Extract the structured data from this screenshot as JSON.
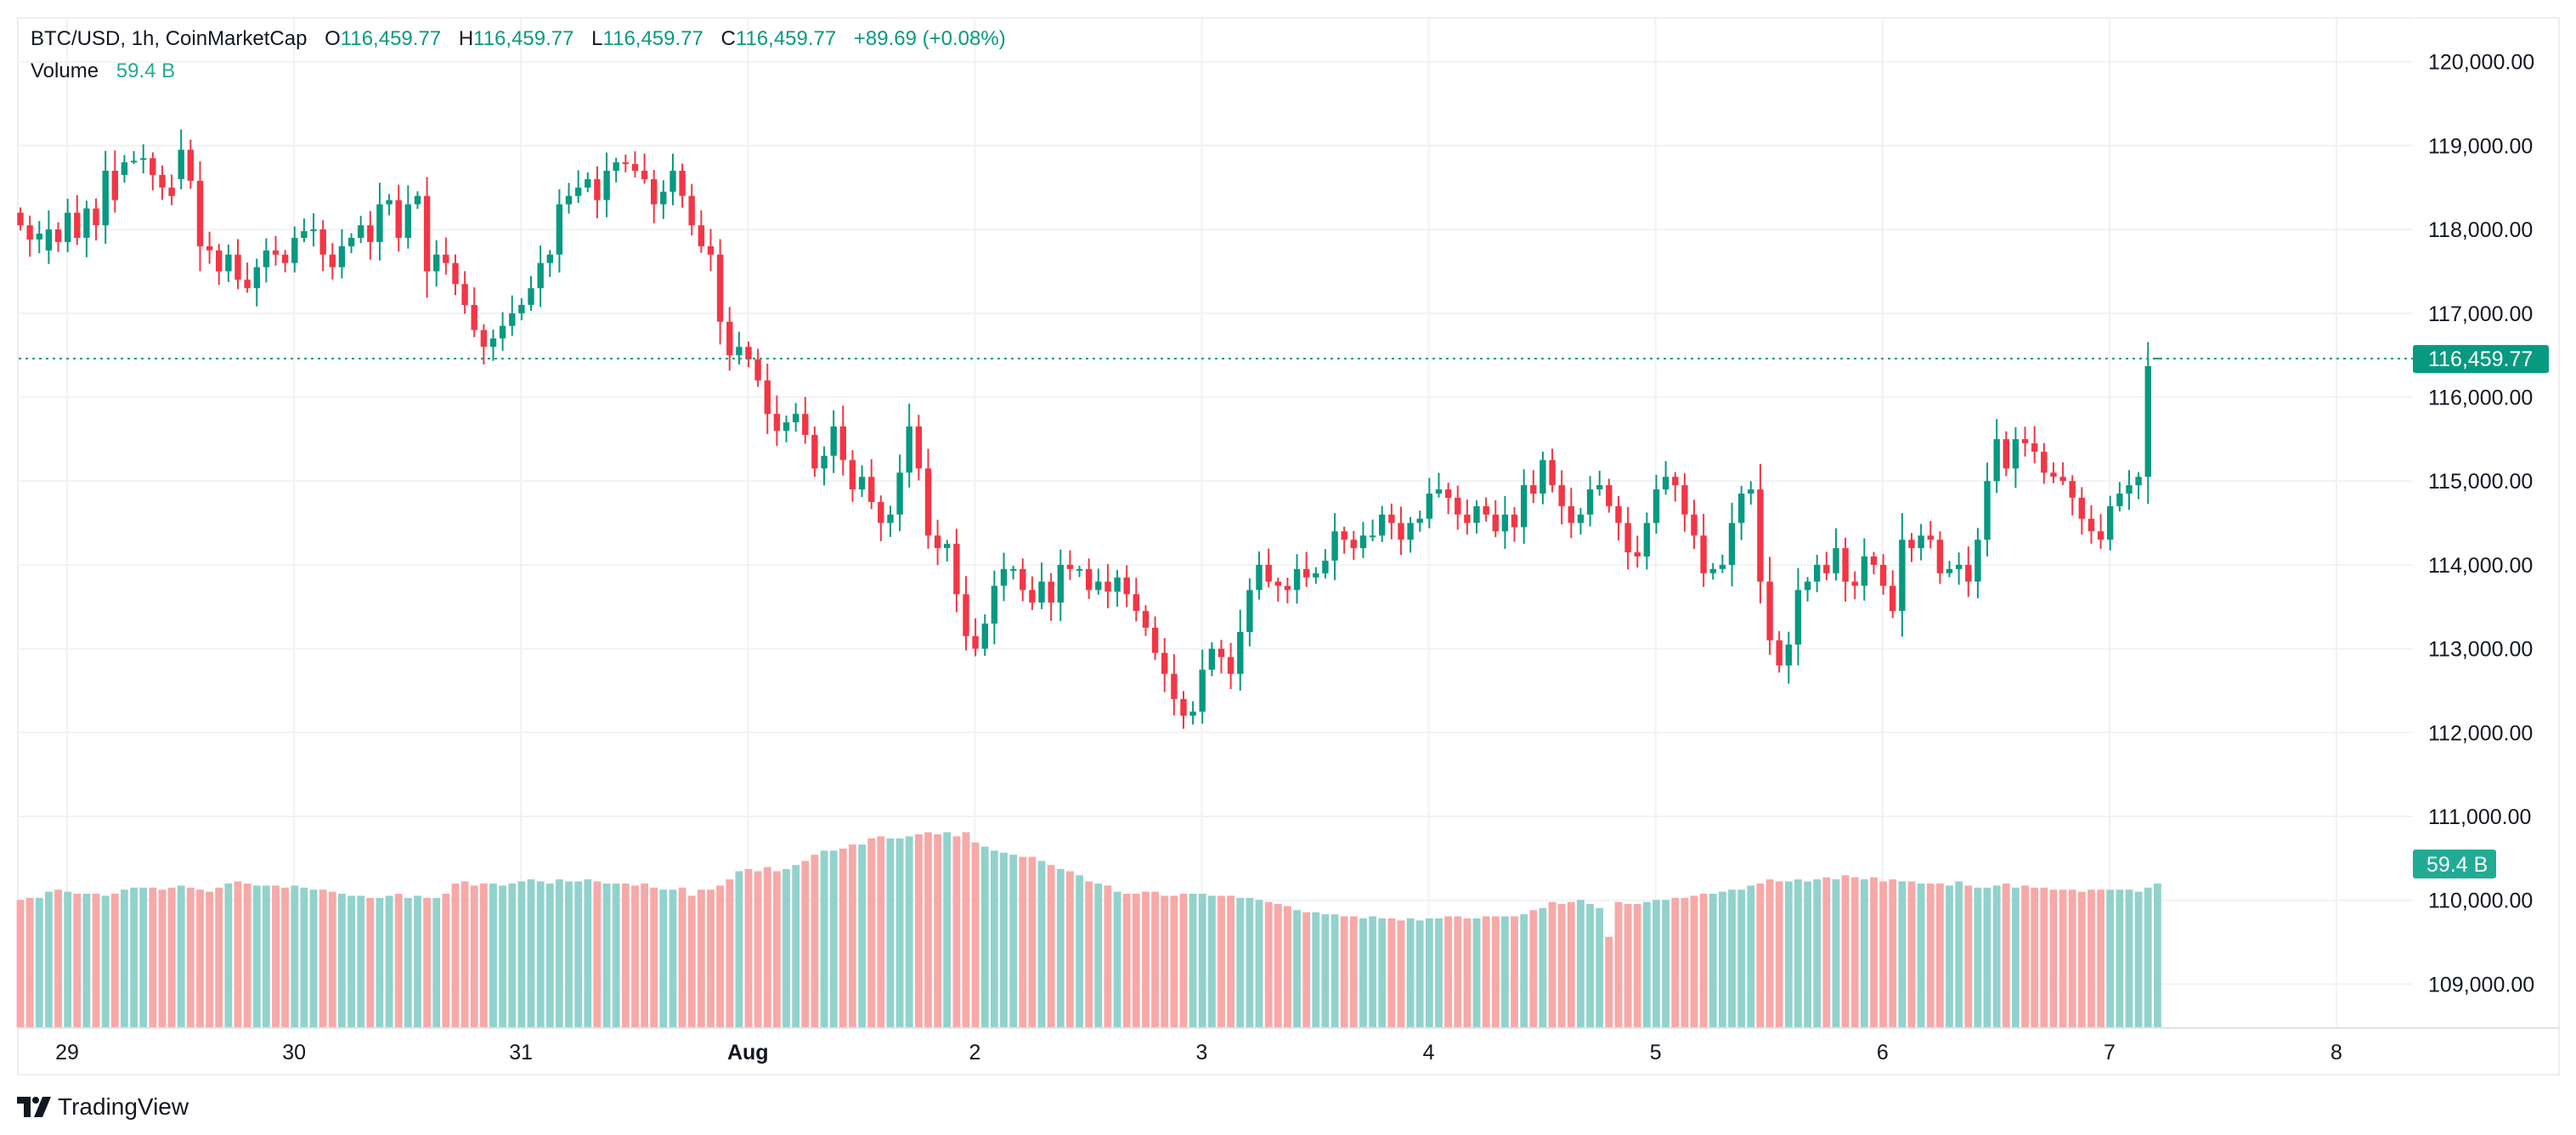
{
  "header": {
    "symbol": "BTC/USD, 1h, CoinMarketCap",
    "open_label": "O",
    "open": "116,459.77",
    "high_label": "H",
    "high": "116,459.77",
    "low_label": "L",
    "low": "116,459.77",
    "close_label": "C",
    "close": "116,459.77",
    "change": "+89.69 (+0.08%)",
    "volume_label": "Volume",
    "volume_value": "59.4 B"
  },
  "branding": {
    "logo_text": "TradingView"
  },
  "colors": {
    "up": "#089981",
    "down": "#F23645",
    "volume_up": "#92D2CC",
    "volume_down": "#F7A9A7",
    "grid": "#f2f2f4",
    "last_price_tag": "#089981",
    "volume_tag": "#22ab94"
  },
  "chart_data": {
    "type": "candlestick",
    "title": "BTC/USD, 1h, CoinMarketCap",
    "interval": "1h",
    "price_axis": {
      "ticks": [
        120000,
        119000,
        118000,
        117000,
        116000,
        115000,
        114000,
        113000,
        112000,
        111000,
        110000,
        109000
      ],
      "tick_labels": [
        "120,000.00",
        "119,000.00",
        "118,000.00",
        "117,000.00",
        "116,000.00",
        "115,000.00",
        "114,000.00",
        "113,000.00",
        "112,000.00",
        "111,000.00",
        "110,000.00",
        "109,000.00"
      ],
      "range": [
        108500,
        120600
      ],
      "position": "right"
    },
    "time_axis": {
      "labels": [
        "29",
        "30",
        "31",
        "Aug",
        "2",
        "3",
        "4",
        "5",
        "6",
        "7",
        "8"
      ],
      "bold_labels": [
        "Aug"
      ],
      "first_candle": "Jul 28 19:00",
      "candles_per_label": 24
    },
    "last_price": 116459.77,
    "last_price_label": "116,459.77",
    "last_volume_label": "59.4 B",
    "grid": true,
    "closes": [
      118050,
      117880,
      117950,
      118000,
      117850,
      118200,
      117900,
      118250,
      118050,
      118700,
      118350,
      118800,
      118820,
      118850,
      118650,
      118500,
      118400,
      118950,
      118580,
      117800,
      117750,
      117500,
      117700,
      117400,
      117300,
      117550,
      117750,
      117700,
      117600,
      117900,
      117980,
      118000,
      117700,
      117550,
      117800,
      117900,
      118050,
      117850,
      118300,
      118350,
      117900,
      118300,
      118400,
      117500,
      117700,
      117600,
      117350,
      117100,
      116800,
      116600,
      116700,
      116850,
      117000,
      117100,
      117300,
      117600,
      117700,
      118300,
      118400,
      118500,
      118600,
      118350,
      118700,
      118800,
      118780,
      118700,
      118600,
      118300,
      118450,
      118700,
      118400,
      118050,
      117800,
      117700,
      116900,
      116500,
      116600,
      116450,
      116200,
      115800,
      115600,
      115700,
      115800,
      115550,
      115150,
      115300,
      115650,
      115250,
      114900,
      115050,
      114750,
      114500,
      114600,
      115100,
      115650,
      115150,
      114350,
      114200,
      114250,
      113650,
      113150,
      113000,
      113300,
      113750,
      113950,
      113950,
      113700,
      113550,
      113800,
      113550,
      114000,
      113950,
      113950,
      113700,
      113800,
      113680,
      113850,
      113650,
      113450,
      113250,
      112950,
      112700,
      112400,
      112200,
      112250,
      112750,
      113000,
      112900,
      112700,
      113200,
      113700,
      114000,
      113800,
      113750,
      113700,
      113950,
      113850,
      113900,
      114050,
      114400,
      114300,
      114200,
      114350,
      114350,
      114600,
      114500,
      114300,
      114500,
      114550,
      114850,
      114900,
      114800,
      114600,
      114500,
      114700,
      114600,
      114400,
      114600,
      114450,
      114950,
      114850,
      115250,
      114950,
      114700,
      114500,
      114600,
      114900,
      114950,
      114700,
      114500,
      114150,
      114100,
      114500,
      114900,
      115050,
      114950,
      114600,
      114350,
      113900,
      113950,
      114000,
      114500,
      114850,
      114900,
      113800,
      113100,
      112800,
      113050,
      113700,
      113800,
      114000,
      113900,
      114200,
      113800,
      113750,
      114100,
      114000,
      113750,
      113450,
      114300,
      114200,
      114350,
      114300,
      113900,
      113950,
      114000,
      113800,
      114300,
      115000,
      115500,
      115150,
      115500,
      115450,
      115350,
      115100,
      115050,
      115000,
      114800,
      114550,
      114400,
      114300,
      114700,
      114850,
      114950,
      115050,
      116370,
      116459.77
    ],
    "opens": [
      118200,
      118050,
      117880,
      117750,
      118000,
      117850,
      118200,
      117900,
      118250,
      118050,
      118700,
      118650,
      118820,
      118850,
      118850,
      118650,
      118500,
      118600,
      118950,
      118580,
      117800,
      117750,
      117500,
      117700,
      117400,
      117300,
      117550,
      117750,
      117700,
      117600,
      117900,
      117980,
      118000,
      117700,
      117550,
      117800,
      117900,
      118050,
      117850,
      118300,
      118350,
      117900,
      118300,
      118400,
      117500,
      117700,
      117600,
      117350,
      117100,
      116800,
      116600,
      116700,
      116850,
      117000,
      117100,
      117300,
      117600,
      117700,
      118300,
      118400,
      118500,
      118600,
      118350,
      118700,
      118800,
      118780,
      118700,
      118600,
      118300,
      118450,
      118700,
      118400,
      118050,
      117800,
      117700,
      116900,
      116500,
      116600,
      116450,
      116200,
      115800,
      115600,
      115700,
      115800,
      115550,
      115150,
      115300,
      115650,
      115250,
      114900,
      115050,
      114750,
      114500,
      114600,
      115100,
      115650,
      115150,
      114350,
      114200,
      114250,
      113650,
      113150,
      113000,
      113300,
      113750,
      113950,
      113950,
      113700,
      113550,
      113800,
      113550,
      114000,
      113950,
      113950,
      113700,
      113800,
      113680,
      113850,
      113650,
      113450,
      113250,
      112950,
      112700,
      112400,
      112200,
      112250,
      112750,
      113000,
      112900,
      112700,
      113200,
      113700,
      114000,
      113800,
      113750,
      113700,
      113950,
      113850,
      113900,
      114050,
      114400,
      114300,
      114200,
      114350,
      114350,
      114600,
      114500,
      114300,
      114500,
      114550,
      114850,
      114900,
      114800,
      114600,
      114500,
      114700,
      114600,
      114400,
      114600,
      114450,
      114950,
      114850,
      115250,
      114950,
      114700,
      114500,
      114600,
      114900,
      114950,
      114700,
      114500,
      114150,
      114100,
      114500,
      114900,
      115050,
      114950,
      114600,
      114350,
      113900,
      113950,
      114000,
      114500,
      114850,
      114900,
      113800,
      113100,
      112800,
      113050,
      113700,
      113800,
      114000,
      113900,
      114200,
      113800,
      113750,
      114100,
      114000,
      113750,
      113450,
      114300,
      114200,
      114350,
      114300,
      113900,
      113950,
      114000,
      113800,
      114300,
      115000,
      115500,
      115150,
      115500,
      115450,
      115350,
      115100,
      115050,
      115000,
      114800,
      114550,
      114400,
      114300,
      114700,
      114850,
      114950,
      115050,
      116459.77
    ],
    "volume_range_hint": "relative",
    "volumes": [
      62,
      63,
      63,
      66,
      67,
      66,
      65,
      65,
      65,
      64,
      65,
      67,
      68,
      68,
      68,
      67,
      68,
      69,
      68,
      67,
      66,
      68,
      70,
      71,
      70,
      69,
      69,
      69,
      68,
      69,
      68,
      67,
      67,
      66,
      65,
      64,
      64,
      63,
      63,
      64,
      65,
      63,
      64,
      63,
      63,
      65,
      70,
      71,
      69,
      70,
      70,
      69,
      70,
      71,
      72,
      71,
      70,
      72,
      71,
      71,
      72,
      71,
      70,
      70,
      70,
      69,
      70,
      68,
      67,
      67,
      68,
      64,
      67,
      67,
      69,
      72,
      76,
      77,
      76,
      78,
      76,
      77,
      79,
      81,
      84,
      86,
      86,
      87,
      89,
      89,
      92,
      93,
      92,
      92,
      93,
      94,
      95,
      94,
      95,
      93,
      95,
      90,
      88,
      86,
      85,
      84,
      83,
      83,
      81,
      79,
      77,
      76,
      74,
      71,
      70,
      69,
      66,
      65,
      65,
      66,
      66,
      64,
      64,
      65,
      65,
      65,
      64,
      64,
      64,
      63,
      63,
      62,
      61,
      60,
      59,
      57,
      56,
      56,
      55,
      55,
      54,
      54,
      53,
      54,
      53,
      53,
      52,
      53,
      52,
      53,
      53,
      54,
      54,
      53,
      53,
      54,
      54,
      54,
      54,
      55,
      57,
      58,
      61,
      60,
      61,
      62,
      60,
      58,
      44,
      61,
      60,
      60,
      61,
      62,
      62,
      63,
      63,
      64,
      65,
      65,
      66,
      67,
      67,
      69,
      70,
      72,
      71,
      71,
      72,
      71,
      72,
      73,
      72,
      74,
      73,
      72,
      73,
      71,
      72,
      71,
      71,
      70,
      70,
      70,
      69,
      71,
      69,
      68,
      68,
      69,
      70,
      68,
      69,
      68,
      68,
      67,
      67,
      67,
      66,
      67,
      67,
      67,
      67,
      67,
      66,
      68,
      70
    ]
  }
}
